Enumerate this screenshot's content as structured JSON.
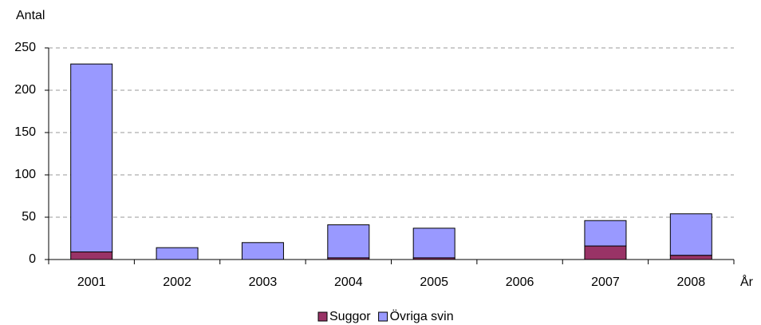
{
  "chart_data": {
    "type": "stacked_bar",
    "y_label": "Antal",
    "x_label": "År",
    "categories": [
      "2001",
      "2002",
      "2003",
      "2004",
      "2005",
      "2006",
      "2007",
      "2008"
    ],
    "series": [
      {
        "name": "Suggor",
        "color": "#993366",
        "values": [
          9,
          0,
          0,
          2,
          2,
          0,
          16,
          5
        ]
      },
      {
        "name": "Övriga svin",
        "color": "#9999ff",
        "values": [
          222,
          14,
          20,
          39,
          35,
          0,
          30,
          49
        ]
      }
    ],
    "ylim": [
      0,
      250
    ],
    "yticks": [
      0,
      50,
      100,
      150,
      200,
      250
    ],
    "grid": true,
    "legend": "bottom"
  }
}
